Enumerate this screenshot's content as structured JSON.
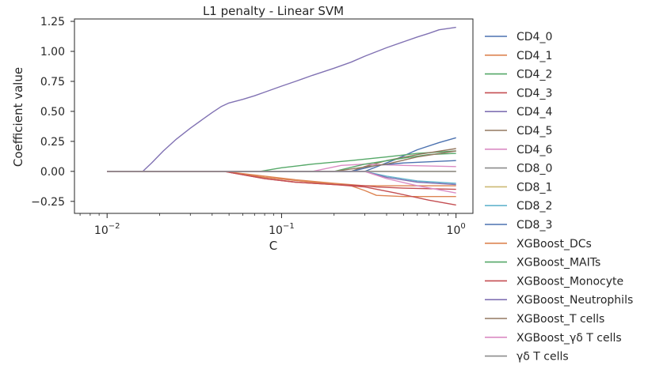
{
  "chart_data": {
    "type": "line",
    "title": "L1 penalty - Linear SVM",
    "xlabel": "C",
    "ylabel": "Coefficient value",
    "xscale": "log",
    "xlim": [
      0.0065,
      1.25
    ],
    "ylim": [
      -0.35,
      1.27
    ],
    "grid": false,
    "legend_position": "outside-right",
    "x_ticks": [
      0.01,
      0.1,
      1
    ],
    "x_tick_labels": [
      {
        "base": "10",
        "exp": "−2"
      },
      {
        "base": "10",
        "exp": "−1"
      },
      {
        "base": "10",
        "exp": "0"
      }
    ],
    "y_ticks": [
      -0.25,
      0,
      0.25,
      0.5,
      0.75,
      1.0,
      1.25
    ],
    "y_tick_labels": [
      "−0.25",
      "0.00",
      "0.25",
      "0.50",
      "0.75",
      "1.00",
      "1.25"
    ],
    "series": [
      {
        "name": "CD4_0",
        "color": "#4c72b0",
        "points": [
          [
            0.01,
            0
          ],
          [
            0.3,
            0
          ],
          [
            0.45,
            0.1
          ],
          [
            0.6,
            0.18
          ],
          [
            0.8,
            0.24
          ],
          [
            1.0,
            0.28
          ]
        ]
      },
      {
        "name": "CD4_1",
        "color": "#dd8452",
        "points": [
          [
            0.01,
            0
          ],
          [
            0.047,
            0
          ],
          [
            0.08,
            -0.05
          ],
          [
            0.15,
            -0.09
          ],
          [
            0.25,
            -0.12
          ],
          [
            0.3,
            -0.16
          ],
          [
            0.35,
            -0.2
          ],
          [
            0.5,
            -0.21
          ],
          [
            1.0,
            -0.21
          ]
        ]
      },
      {
        "name": "CD4_2",
        "color": "#55a868",
        "points": [
          [
            0.01,
            0
          ],
          [
            0.075,
            0
          ],
          [
            0.1,
            0.03
          ],
          [
            0.15,
            0.06
          ],
          [
            0.25,
            0.09
          ],
          [
            0.4,
            0.12
          ],
          [
            0.6,
            0.15
          ],
          [
            1.0,
            0.17
          ]
        ]
      },
      {
        "name": "CD4_3",
        "color": "#c44e52",
        "points": [
          [
            0.01,
            0
          ],
          [
            0.047,
            0
          ],
          [
            0.08,
            -0.06
          ],
          [
            0.12,
            -0.09
          ],
          [
            0.2,
            -0.11
          ],
          [
            0.3,
            -0.13
          ],
          [
            0.45,
            -0.18
          ],
          [
            0.7,
            -0.24
          ],
          [
            1.0,
            -0.28
          ]
        ]
      },
      {
        "name": "CD4_4",
        "color": "#8172b3",
        "points": [
          [
            0.01,
            0
          ],
          [
            0.016,
            0
          ],
          [
            0.018,
            0.07
          ],
          [
            0.021,
            0.17
          ],
          [
            0.025,
            0.27
          ],
          [
            0.03,
            0.36
          ],
          [
            0.035,
            0.43
          ],
          [
            0.04,
            0.49
          ],
          [
            0.045,
            0.54
          ],
          [
            0.05,
            0.57
          ],
          [
            0.06,
            0.6
          ],
          [
            0.07,
            0.63
          ],
          [
            0.08,
            0.66
          ],
          [
            0.1,
            0.71
          ],
          [
            0.12,
            0.75
          ],
          [
            0.15,
            0.8
          ],
          [
            0.2,
            0.86
          ],
          [
            0.25,
            0.91
          ],
          [
            0.3,
            0.96
          ],
          [
            0.4,
            1.03
          ],
          [
            0.5,
            1.08
          ],
          [
            0.6,
            1.12
          ],
          [
            0.7,
            1.15
          ],
          [
            0.8,
            1.18
          ],
          [
            0.9,
            1.19
          ],
          [
            1.0,
            1.2
          ]
        ]
      },
      {
        "name": "CD4_5",
        "color": "#937860",
        "points": [
          [
            0.01,
            0
          ],
          [
            0.25,
            0
          ],
          [
            0.3,
            0.04
          ],
          [
            0.4,
            0.09
          ],
          [
            0.6,
            0.14
          ],
          [
            1.0,
            0.19
          ]
        ]
      },
      {
        "name": "CD4_6",
        "color": "#da8bc3",
        "points": [
          [
            0.01,
            0
          ],
          [
            0.15,
            0
          ],
          [
            0.22,
            0.05
          ],
          [
            0.3,
            0.06
          ],
          [
            0.5,
            0.05
          ],
          [
            1.0,
            0.04
          ]
        ]
      },
      {
        "name": "CD8_0",
        "color": "#8c8c8c",
        "points": [
          [
            0.01,
            0
          ],
          [
            1.0,
            0
          ]
        ]
      },
      {
        "name": "CD8_1",
        "color": "#ccb974",
        "points": [
          [
            0.01,
            0
          ],
          [
            1.0,
            0
          ]
        ]
      },
      {
        "name": "CD8_2",
        "color": "#64b5cd",
        "points": [
          [
            0.01,
            0
          ],
          [
            0.3,
            0
          ],
          [
            0.4,
            -0.04
          ],
          [
            0.6,
            -0.08
          ],
          [
            1.0,
            -0.1
          ]
        ]
      },
      {
        "name": "CD8_3",
        "color": "#4c72b0",
        "points": [
          [
            0.01,
            0
          ],
          [
            0.25,
            0
          ],
          [
            0.35,
            0.05
          ],
          [
            0.5,
            0.07
          ],
          [
            1.0,
            0.09
          ]
        ]
      },
      {
        "name": "XGBoost_DCs",
        "color": "#dd8452",
        "points": [
          [
            0.01,
            0
          ],
          [
            0.047,
            0
          ],
          [
            0.08,
            -0.04
          ],
          [
            0.12,
            -0.07
          ],
          [
            0.2,
            -0.1
          ],
          [
            0.3,
            -0.12
          ],
          [
            1.0,
            -0.12
          ]
        ]
      },
      {
        "name": "XGBoost_MAITs",
        "color": "#55a868",
        "points": [
          [
            0.01,
            0
          ],
          [
            0.2,
            0
          ],
          [
            0.3,
            0.06
          ],
          [
            0.5,
            0.11
          ],
          [
            0.7,
            0.14
          ],
          [
            1.0,
            0.15
          ]
        ]
      },
      {
        "name": "XGBoost_Monocyte",
        "color": "#c44e52",
        "points": [
          [
            0.01,
            0
          ],
          [
            0.047,
            0
          ],
          [
            0.08,
            -0.06
          ],
          [
            0.12,
            -0.09
          ],
          [
            0.2,
            -0.11
          ],
          [
            0.3,
            -0.12
          ],
          [
            0.35,
            -0.13
          ],
          [
            0.5,
            -0.14
          ],
          [
            1.0,
            -0.15
          ]
        ]
      },
      {
        "name": "XGBoost_Neutrophils",
        "color": "#8172b3",
        "points": [
          [
            0.01,
            0
          ],
          [
            0.3,
            0
          ],
          [
            0.4,
            -0.05
          ],
          [
            0.6,
            -0.09
          ],
          [
            1.0,
            -0.11
          ]
        ]
      },
      {
        "name": "XGBoost_T cells",
        "color": "#937860",
        "points": [
          [
            0.01,
            0
          ],
          [
            0.2,
            0
          ],
          [
            0.28,
            0.03
          ],
          [
            0.4,
            0.06
          ],
          [
            0.6,
            0.12
          ],
          [
            1.0,
            0.17
          ]
        ]
      },
      {
        "name": "XGBoost_γδ T cells",
        "color": "#da8bc3",
        "points": [
          [
            0.01,
            0
          ],
          [
            0.3,
            0
          ],
          [
            0.4,
            -0.06
          ],
          [
            0.6,
            -0.12
          ],
          [
            1.0,
            -0.18
          ]
        ]
      },
      {
        "name": "γδ T cells",
        "color": "#8c8c8c",
        "points": [
          [
            0.01,
            0
          ],
          [
            1.0,
            0
          ]
        ]
      }
    ]
  }
}
